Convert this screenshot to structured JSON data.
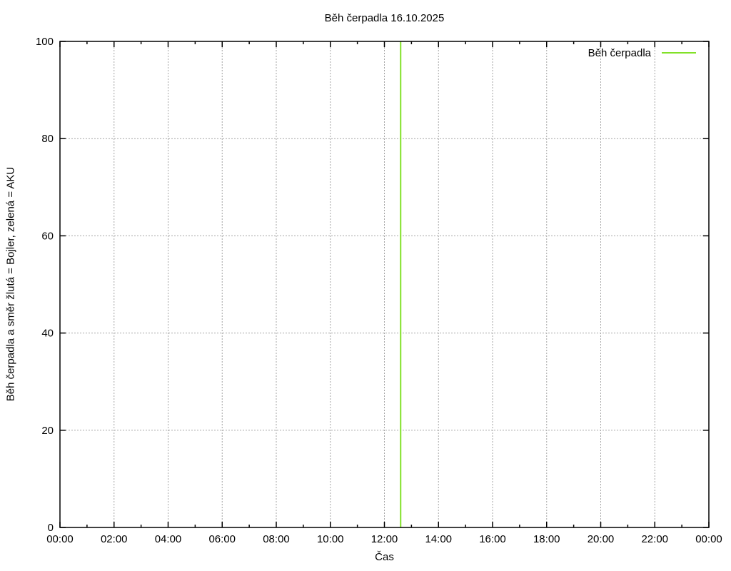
{
  "chart_data": {
    "type": "line",
    "title": "Běh čerpadla 16.10.2025",
    "xlabel": "Čas",
    "ylabel": "Běh čerpadla a směr žlutá = Bojler, zelená = AKU",
    "x_unit": "hours",
    "xlim": [
      0,
      24
    ],
    "x_major_tick_hours": 2,
    "x_minor_tick_hours": 1,
    "x_tick_labels": [
      "00:00",
      "02:00",
      "04:00",
      "06:00",
      "08:00",
      "10:00",
      "12:00",
      "14:00",
      "16:00",
      "18:00",
      "20:00",
      "22:00",
      "00:00"
    ],
    "ylim": [
      0,
      100
    ],
    "y_ticks": [
      0,
      20,
      40,
      60,
      80,
      100
    ],
    "grid": true,
    "legend_position": "top-right-inside",
    "series": [
      {
        "name": "Běh čerpadla",
        "color": "#82e128",
        "style": "vertical-line",
        "points": [
          {
            "x_hours": 12.6,
            "y_from": 0,
            "y_to": 100
          }
        ]
      }
    ],
    "colors": {
      "axis": "#000000",
      "grid": "#a6a6a6",
      "background": "#ffffff",
      "text": "#000000"
    }
  }
}
